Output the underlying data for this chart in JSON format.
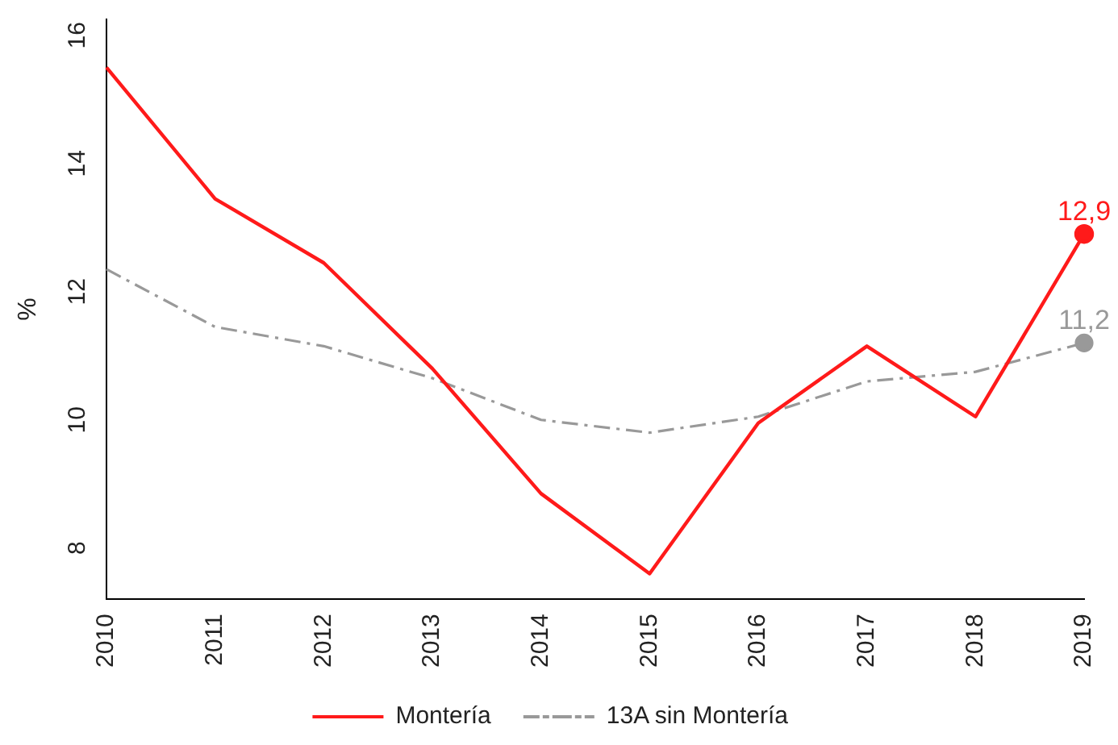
{
  "chart_data": {
    "type": "line",
    "ylabel": "%",
    "categories": [
      "2010",
      "2011",
      "2012",
      "2013",
      "2014",
      "2015",
      "2016",
      "2017",
      "2018",
      "2019"
    ],
    "series": [
      {
        "name": "Montería",
        "color": "#ff1a1a",
        "line_style": "solid",
        "values": [
          15.5,
          13.45,
          12.45,
          10.8,
          8.85,
          7.6,
          9.95,
          11.15,
          10.05,
          12.9
        ],
        "value_labels": [
          null,
          null,
          null,
          null,
          null,
          null,
          null,
          null,
          null,
          "12,9"
        ]
      },
      {
        "name": "13A sin Montería",
        "color": "#999999",
        "line_style": "dashed",
        "values": [
          12.35,
          11.45,
          11.15,
          10.65,
          10.0,
          9.8,
          10.05,
          10.6,
          10.75,
          11.2
        ],
        "value_labels": [
          null,
          null,
          null,
          null,
          null,
          null,
          null,
          null,
          null,
          "11,2"
        ]
      }
    ],
    "ylim": [
      7.2,
      16.25
    ],
    "yticks": [
      8,
      10,
      12,
      14,
      16
    ],
    "grid": false,
    "legend": "bottom"
  }
}
